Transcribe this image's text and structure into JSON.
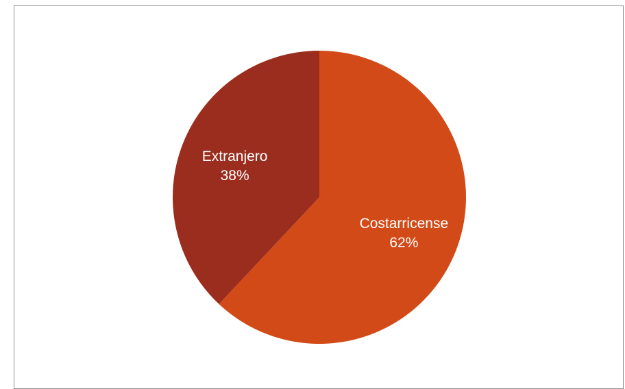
{
  "chart_data": {
    "type": "pie",
    "slices": [
      {
        "label": "Costarricense",
        "percent_label": "62%",
        "value": 62,
        "color": "#D24A18"
      },
      {
        "label": "Extranjero",
        "percent_label": "38%",
        "value": 38,
        "color": "#9B2D1F"
      }
    ],
    "start_angle_deg": 0,
    "direction": "clockwise",
    "legend": "none"
  }
}
